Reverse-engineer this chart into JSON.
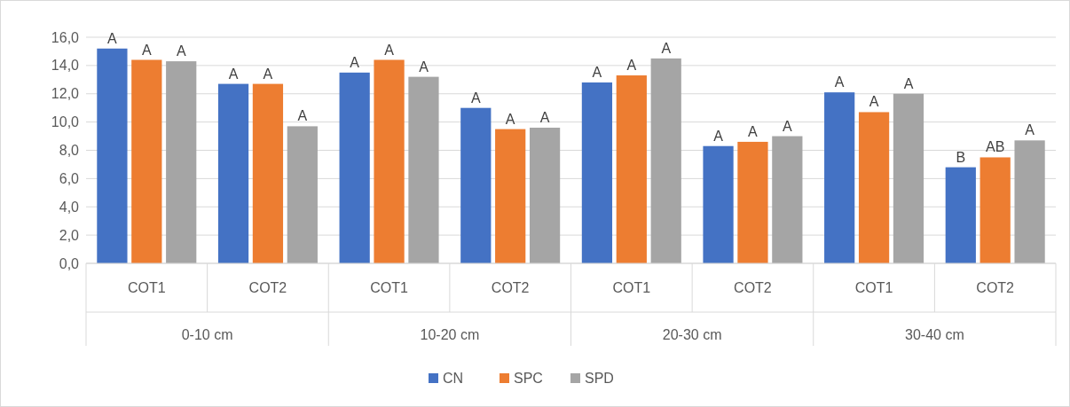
{
  "chart_data": {
    "type": "bar",
    "categories": [
      "COT1",
      "COT2",
      "COT1",
      "COT2",
      "COT1",
      "COT2",
      "COT1",
      "COT2"
    ],
    "annotations": [
      "0-10 cm",
      "10-20 cm",
      "20-30 cm",
      "30-40 cm"
    ],
    "series": [
      {
        "name": "CN",
        "color": "#4472c4",
        "values": [
          15.2,
          12.7,
          13.5,
          11.0,
          12.8,
          8.3,
          12.1,
          6.8
        ],
        "value_labels": [
          "A",
          "A",
          "A",
          "A",
          "A",
          "A",
          "A",
          "B"
        ]
      },
      {
        "name": "SPC",
        "color": "#ed7d31",
        "values": [
          14.4,
          12.7,
          14.4,
          9.5,
          13.3,
          8.6,
          10.7,
          7.5
        ],
        "value_labels": [
          "A",
          "A",
          "A",
          "A",
          "A",
          "A",
          "A",
          "AB"
        ]
      },
      {
        "name": "SPD",
        "color": "#a5a5a5",
        "values": [
          14.3,
          9.7,
          13.2,
          9.6,
          14.5,
          9.0,
          12.0,
          8.7
        ],
        "value_labels": [
          "A",
          "A",
          "A",
          "A",
          "A",
          "A",
          "A",
          "A"
        ]
      }
    ],
    "ylim": [
      0,
      16
    ],
    "yticks": [
      {
        "value": 0,
        "label": "0,0"
      },
      {
        "value": 2,
        "label": "2,0"
      },
      {
        "value": 4,
        "label": "4,0"
      },
      {
        "value": 6,
        "label": "6,0"
      },
      {
        "value": 8,
        "label": "8,0"
      },
      {
        "value": 10,
        "label": "10,0"
      },
      {
        "value": 12,
        "label": "12,0"
      },
      {
        "value": 14,
        "label": "14,0"
      },
      {
        "value": 16,
        "label": "16,0"
      }
    ],
    "grid": "y",
    "legend": "bottom"
  }
}
